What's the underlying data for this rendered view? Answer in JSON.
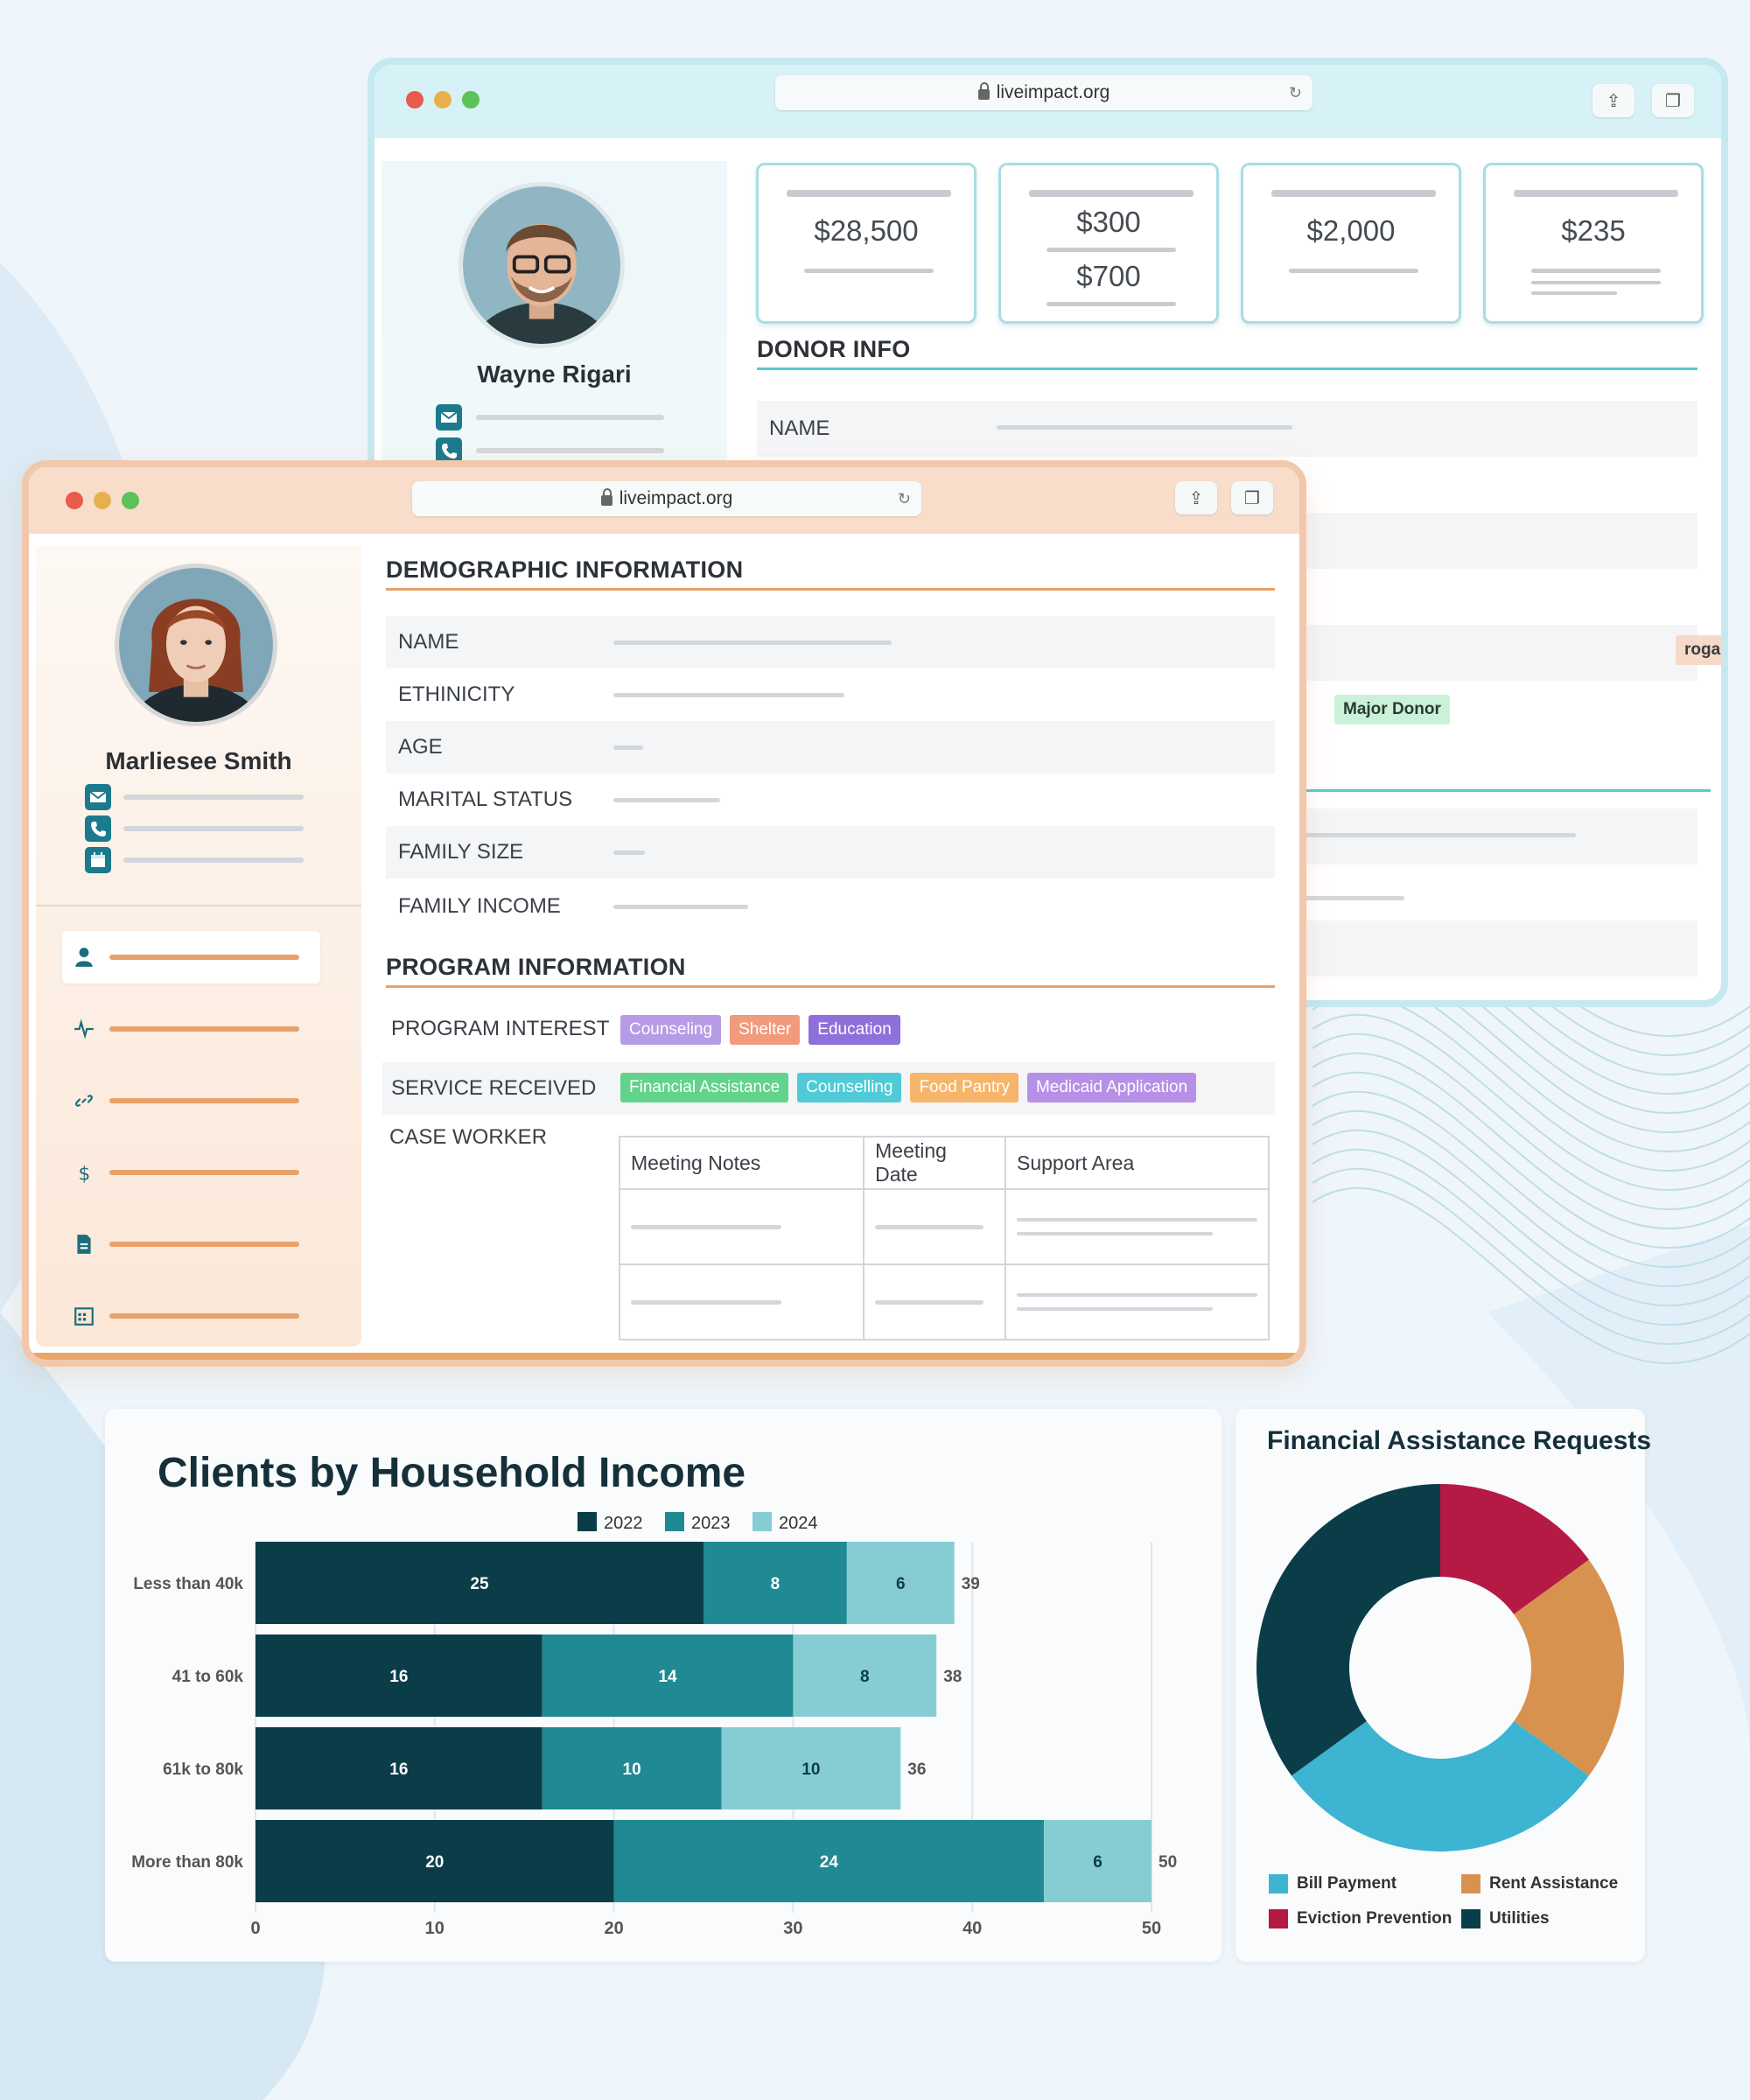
{
  "donor_window": {
    "url": "liveimpact.org",
    "profile": {
      "name": "Wayne Rigari"
    },
    "stats": [
      {
        "values": [
          "$28,500"
        ]
      },
      {
        "values": [
          "$300",
          "$700"
        ]
      },
      {
        "values": [
          "$2,000"
        ]
      },
      {
        "values": [
          "$235"
        ]
      }
    ],
    "section_title": "DONOR INFO",
    "name_label": "NAME",
    "tags": {
      "program_partial": "rogarm",
      "major_donor": "Major Donor"
    }
  },
  "client_window": {
    "url": "liveimpact.org",
    "profile": {
      "name": "Marliesee Smith"
    },
    "demographic_title": "DEMOGRAPHIC INFORMATION",
    "demographic_fields": [
      "NAME",
      "ETHINICITY",
      "AGE",
      "MARITAL STATUS",
      "FAMILY SIZE",
      "FAMILY INCOME"
    ],
    "program_title": "PROGRAM INFORMATION",
    "program_interest_label": "PROGRAM INTEREST",
    "program_interest_tags": [
      {
        "label": "Counseling",
        "color": "#b89be6"
      },
      {
        "label": "Shelter",
        "color": "#f19a7c"
      },
      {
        "label": "Education",
        "color": "#8f6fd9"
      }
    ],
    "service_received_label": "SERVICE RECEIVED",
    "service_received_tags": [
      {
        "label": "Financial Assistance",
        "color": "#62d38a"
      },
      {
        "label": "Counselling",
        "color": "#4fcad6"
      },
      {
        "label": "Food Pantry",
        "color": "#f6b56a"
      },
      {
        "label": "Medicaid Application",
        "color": "#b690e6"
      }
    ],
    "case_worker_label": "CASE WORKER",
    "table_headers": [
      "Meeting Notes",
      "Meeting Date",
      "Support Area"
    ]
  },
  "income_chart": {
    "title": "Clients by Household Income",
    "colors": [
      "#0b3d49",
      "#1f8a93",
      "#86cdd3"
    ],
    "chart_data": {
      "type": "bar",
      "orientation": "horizontal",
      "stacked": true,
      "categories": [
        "Less than 40k",
        "41 to 60k",
        "61k to 80k",
        "More than 80k"
      ],
      "series": [
        {
          "name": "2022",
          "values": [
            25,
            16,
            16,
            20
          ]
        },
        {
          "name": "2023",
          "values": [
            8,
            14,
            10,
            24
          ]
        },
        {
          "name": "2024",
          "values": [
            6,
            8,
            10,
            6
          ]
        }
      ],
      "totals": [
        39,
        38,
        36,
        50
      ],
      "xlim": [
        0,
        50
      ],
      "xticks": [
        0,
        10,
        20,
        30,
        40,
        50
      ],
      "grid": true,
      "legend": "top"
    }
  },
  "donut_chart": {
    "title": "Financial Assistance Requests",
    "chart_data": {
      "type": "pie",
      "donut": true,
      "labels": [
        "Eviction Prevention",
        "Rent Assistance",
        "Bill Payment",
        "Utilities"
      ],
      "values": [
        15,
        20,
        30,
        35
      ],
      "colors": [
        "#b51a45",
        "#d8924f",
        "#3db4d1",
        "#0b3d49"
      ],
      "legend_order": [
        "Bill Payment",
        "Rent Assistance",
        "Eviction Prevention",
        "Utilities"
      ],
      "legend": "bottom"
    }
  }
}
